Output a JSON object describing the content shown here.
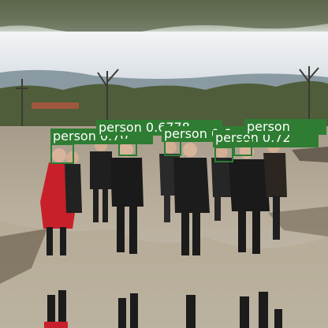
{
  "image": {
    "description_icon": "photo-flipped-reflection",
    "box_color": "#2e7d32"
  },
  "detections": [
    {
      "label": "person",
      "score": "0.70",
      "text": "person 0.70"
    },
    {
      "label": "person",
      "score": "0.6778",
      "text": "person 0.6778"
    },
    {
      "label": "person",
      "score": "0.6",
      "text": "person 0.6"
    },
    {
      "label": "person",
      "score": "0.72",
      "text": "person 0.72"
    },
    {
      "label": "person",
      "score": "",
      "text": "person"
    }
  ]
}
